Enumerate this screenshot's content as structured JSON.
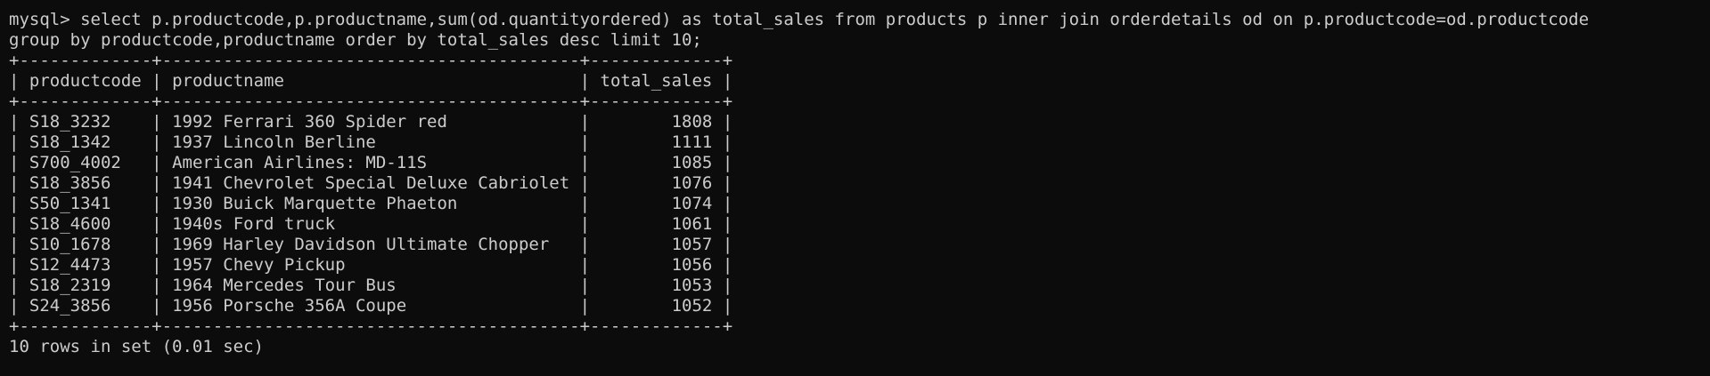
{
  "terminal": {
    "prompt": "mysql> ",
    "query_line_1": "select p.productcode,p.productname,sum(od.quantityordered) as total_sales from products p inner join orderdetails od on p.productcode=od.productcode",
    "query_line_2": "group by productcode,productname order by total_sales desc limit 10;"
  },
  "result_table": {
    "columns": [
      "productcode",
      "productname",
      "total_sales"
    ],
    "rows": [
      [
        "S18_3232",
        "1992 Ferrari 360 Spider red",
        "1808"
      ],
      [
        "S18_1342",
        "1937 Lincoln Berline",
        "1111"
      ],
      [
        "S700_4002",
        "American Airlines: MD-11S",
        "1085"
      ],
      [
        "S18_3856",
        "1941 Chevrolet Special Deluxe Cabriolet",
        "1076"
      ],
      [
        "S50_1341",
        "1930 Buick Marquette Phaeton",
        "1074"
      ],
      [
        "S18_4600",
        "1940s Ford truck",
        "1061"
      ],
      [
        "S10_1678",
        "1969 Harley Davidson Ultimate Chopper",
        "1057"
      ],
      [
        "S12_4473",
        "1957 Chevy Pickup",
        "1056"
      ],
      [
        "S18_2319",
        "1964 Mercedes Tour Bus",
        "1053"
      ],
      [
        "S24_3856",
        "1956 Porsche 356A Coupe",
        "1052"
      ]
    ],
    "footer": "10 rows in set (0.01 sec)"
  },
  "colors": {
    "background": "#0c0c0c",
    "foreground": "#cccccc"
  }
}
